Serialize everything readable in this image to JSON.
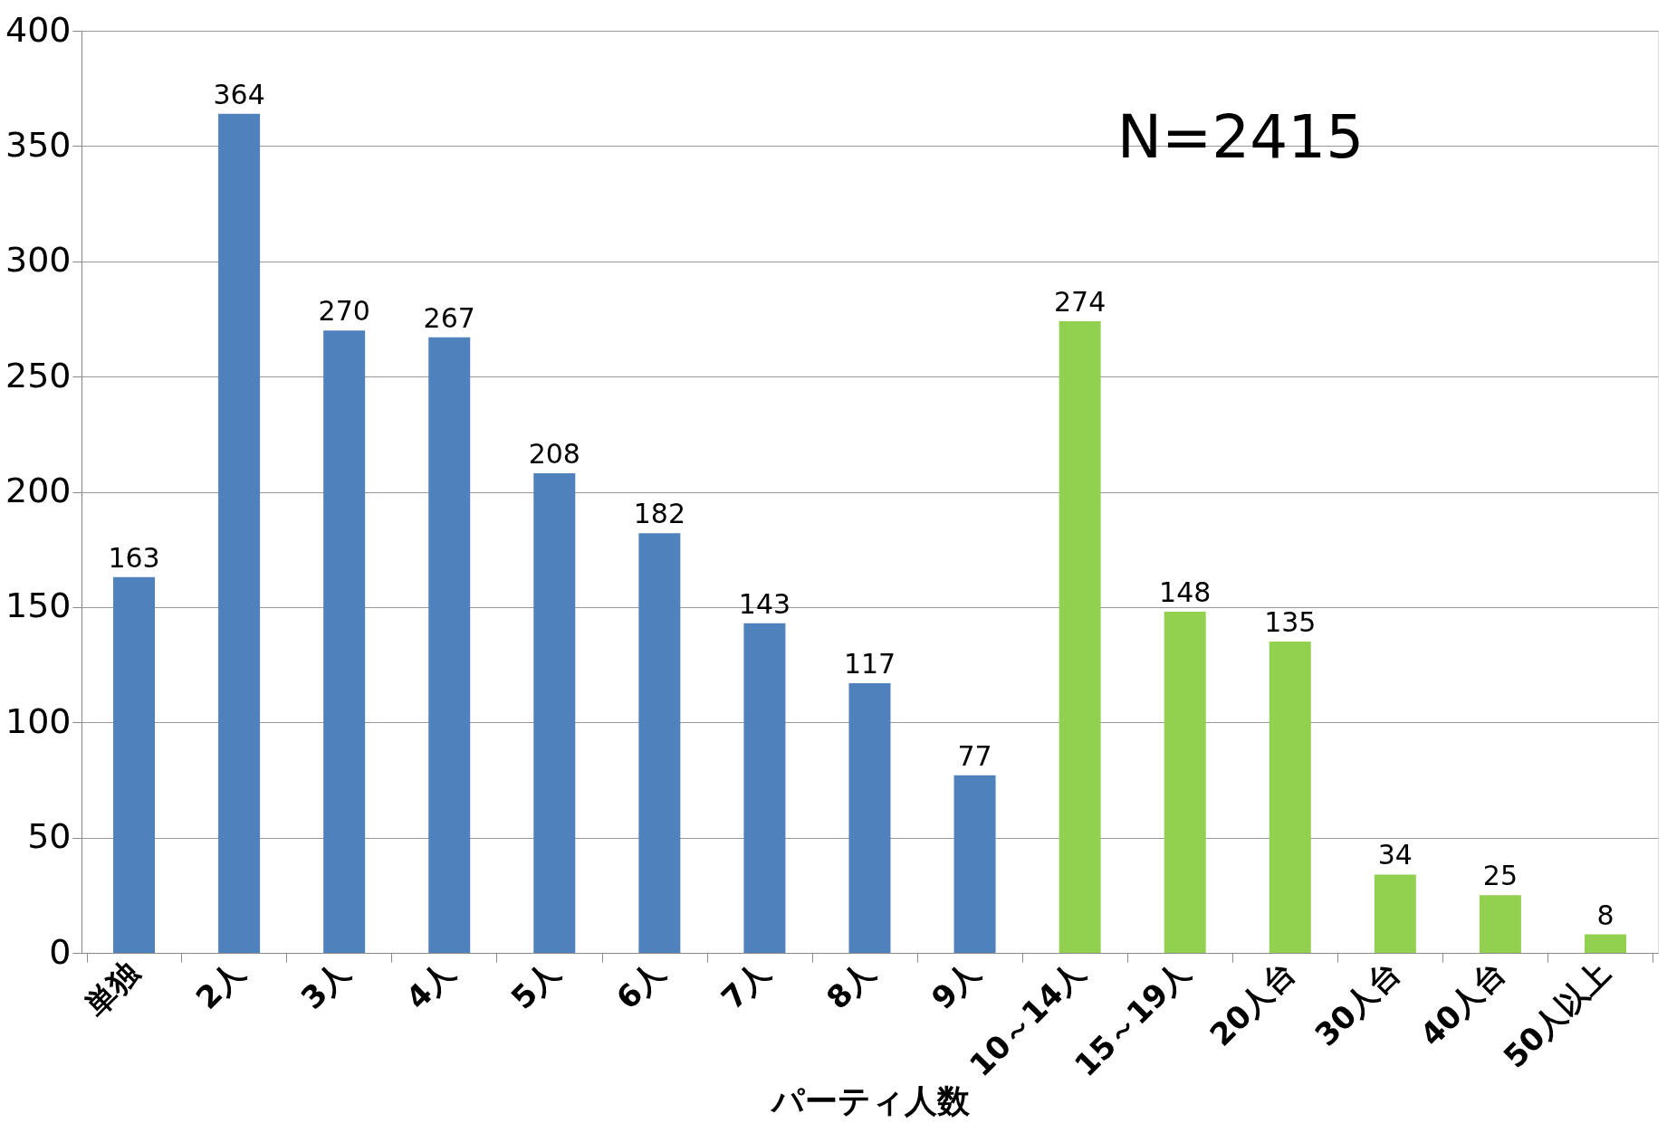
{
  "chart_data": {
    "type": "bar",
    "xlabel": "パーティ人数",
    "categories": [
      "単独",
      "2人",
      "3人",
      "4人",
      "5人",
      "6人",
      "7人",
      "8人",
      "9人",
      "10～14人",
      "15～19人",
      "20人台",
      "30人台",
      "40人台",
      "50人以上"
    ],
    "values": [
      163,
      364,
      270,
      267,
      208,
      182,
      143,
      117,
      77,
      274,
      148,
      135,
      34,
      25,
      8
    ],
    "colors": [
      "#4f81bd",
      "#4f81bd",
      "#4f81bd",
      "#4f81bd",
      "#4f81bd",
      "#4f81bd",
      "#4f81bd",
      "#4f81bd",
      "#4f81bd",
      "#92d050",
      "#92d050",
      "#92d050",
      "#92d050",
      "#92d050",
      "#92d050"
    ],
    "ylim": [
      0,
      400
    ],
    "yticks": [
      0,
      50,
      100,
      150,
      200,
      250,
      300,
      350,
      400
    ],
    "grid": "y",
    "data_labels": true,
    "legend": false,
    "annotations": [
      "N=2415"
    ]
  }
}
